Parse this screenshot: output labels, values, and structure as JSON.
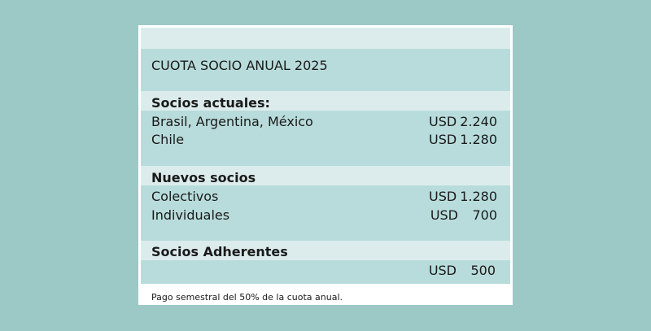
{
  "table": {
    "title": "CUOTA SOCIO ANUAL 2025",
    "sections": [
      {
        "heading": "Socios actuales:",
        "rows": [
          {
            "label": "Brasil, Argentina, México",
            "currency": "USD",
            "amount": "2.240"
          },
          {
            "label": "Chile",
            "currency": "USD",
            "amount": "1.280"
          }
        ]
      },
      {
        "heading": "Nuevos socios",
        "rows": [
          {
            "label": "Colectivos",
            "currency": "USD",
            "amount": "1.280"
          },
          {
            "label": "Individuales",
            "currency": "USD",
            "amount": "700"
          }
        ]
      },
      {
        "heading": "Socios Adherentes",
        "rows": [
          {
            "label": "",
            "currency": "USD",
            "amount": "500"
          }
        ]
      }
    ],
    "footnote": "Pago semestral del 50% de la cuota anual."
  },
  "colors": {
    "page_background": "#9cc8c6",
    "band_light": "#dcecec",
    "band_dark": "#b8dcdb",
    "card_background": "#ffffff"
  }
}
